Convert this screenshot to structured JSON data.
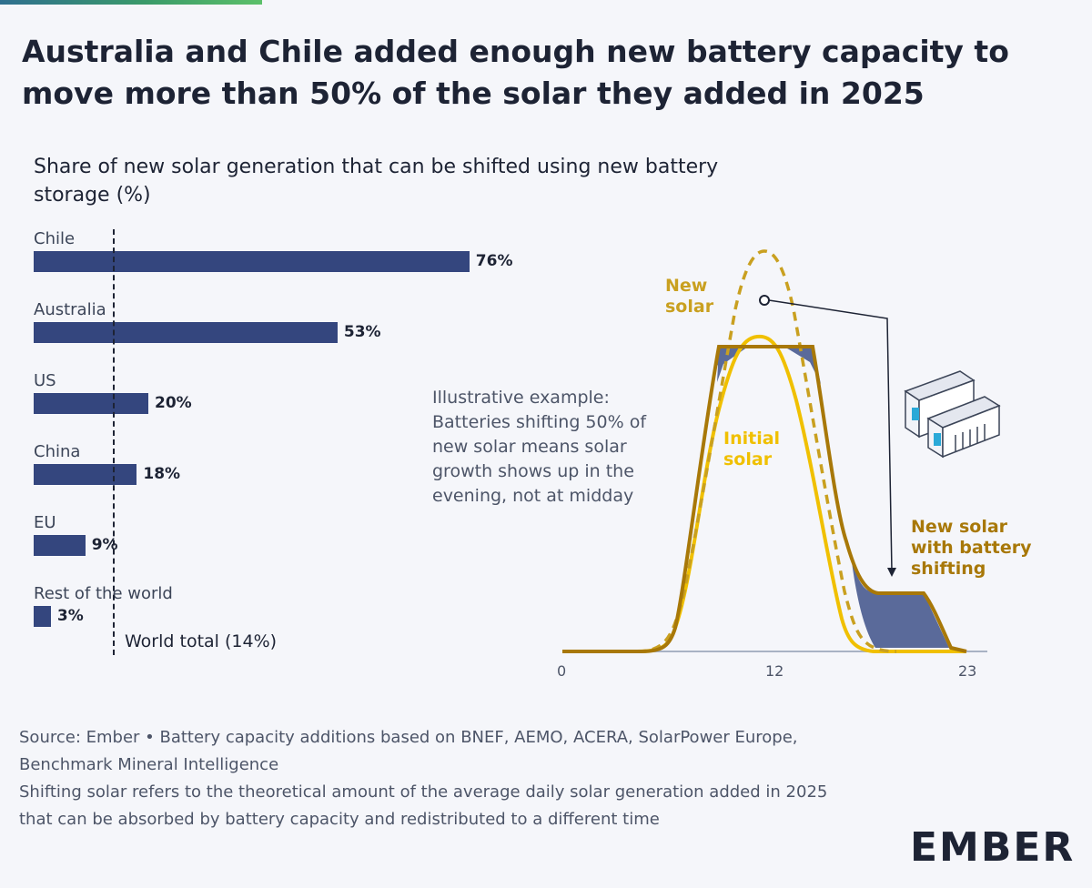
{
  "title": "Australia and Chile added enough new battery capacity to move more than 50% of the solar they added in 2025",
  "colors": {
    "bar": "#34467e",
    "new_solar": "#c9a020",
    "initial_solar": "#f0c000",
    "shifted": "#a87808",
    "accent_bar": "#3a9a6a"
  },
  "chart_data": [
    {
      "type": "bar",
      "orientation": "horizontal",
      "title": "Share of new solar generation that can be shifted using new battery storage (%)",
      "categories": [
        "Chile",
        "Australia",
        "US",
        "China",
        "EU",
        "Rest of the world"
      ],
      "values": [
        76,
        53,
        20,
        18,
        9,
        3
      ],
      "value_labels": [
        "76%",
        "53%",
        "20%",
        "18%",
        "9%",
        "3%"
      ],
      "reference_line": {
        "value": 14,
        "label": "World total (14%)"
      },
      "xlim": [
        0,
        100
      ]
    },
    {
      "type": "line",
      "annotation": "Illustrative example: Batteries shifting 50% of new solar means solar growth shows up in the evening, not at midday",
      "x_ticks": [
        "0",
        "12",
        "23"
      ],
      "xlim": [
        0,
        23
      ],
      "series": [
        {
          "name": "New solar",
          "style": "dashed"
        },
        {
          "name": "Initial solar",
          "style": "solid"
        },
        {
          "name": "New solar with battery shifting",
          "style": "solid"
        }
      ]
    }
  ],
  "labels": {
    "new_solar": [
      "New",
      "solar"
    ],
    "initial_solar": [
      "Initial",
      "solar"
    ],
    "shifted": [
      "New solar",
      "with battery",
      "shifting"
    ]
  },
  "source": [
    "Source: Ember • Battery capacity additions based on BNEF, AEMO, ACERA, SolarPower Europe, Benchmark Mineral Intelligence",
    "Shifting solar refers to the theoretical amount of the average daily solar generation added in 2025 that can be absorbed by battery capacity and redistributed to a different time"
  ],
  "logo": "EMBER"
}
